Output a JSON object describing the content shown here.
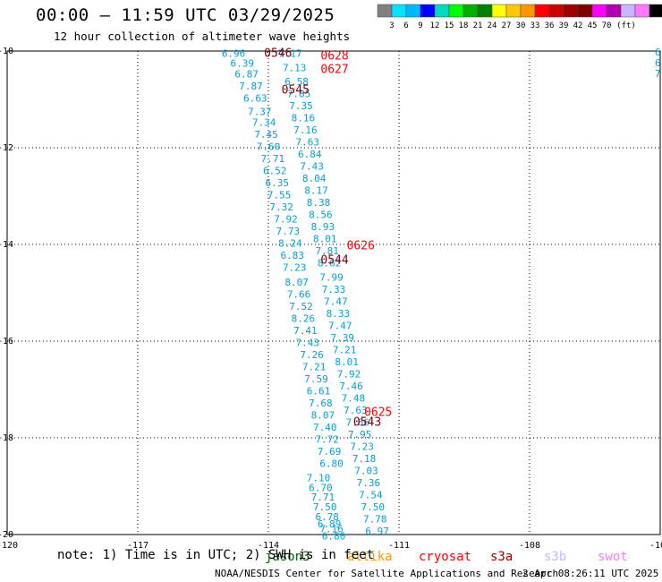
{
  "header": {
    "title": "00:00 – 11:59 UTC 03/29/2025",
    "subtitle": "12 hour collection of altimeter wave heights"
  },
  "footer": {
    "note": "note: 1) Time is in UTC; 2) SWH is in feet",
    "credit": "NOAA/NESDIS Center for Satellite Applications and Research",
    "timestamp": "2 Apr 08:26:11 UTC 2025"
  },
  "colorbar": {
    "colors": [
      "#808080",
      "#00e5ff",
      "#00b8ff",
      "#0000ff",
      "#00d8c0",
      "#00ff00",
      "#00b000",
      "#008000",
      "#ffff00",
      "#ffc800",
      "#ff9600",
      "#ff0000",
      "#d00000",
      "#a00000",
      "#800000",
      "#ff00ff",
      "#b000b0",
      "#c8b4ff",
      "#ff78ff",
      "#000000"
    ],
    "labels": [
      "3",
      "6",
      "9",
      "12",
      "15",
      "18",
      "21",
      "24",
      "27",
      "30",
      "33",
      "36",
      "39",
      "42",
      "45",
      "70",
      "(ft)"
    ]
  },
  "satellites": [
    {
      "name": "jason3",
      "color": "#006400"
    },
    {
      "name": "altika",
      "color": "#ff9600"
    },
    {
      "name": "cryosat",
      "color": "#ff0000"
    },
    {
      "name": "s3a",
      "color": "#a00000"
    },
    {
      "name": "s3b",
      "color": "#c8b4ff"
    },
    {
      "name": "swot",
      "color": "#ff78ff"
    }
  ],
  "chart_data": {
    "type": "scatter",
    "title": "00:00 – 11:59 UTC 03/29/2025",
    "subtitle": "12 hour collection of altimeter wave heights",
    "xlim": [
      -120,
      -105
    ],
    "ylim": [
      -20,
      -10
    ],
    "x_ticks": [
      "-120",
      "-117",
      "-114",
      "-111",
      "-108",
      "-105"
    ],
    "y_ticks": [
      "-10",
      "-12",
      "-14",
      "-16",
      "-18",
      "-20"
    ],
    "grid": true,
    "units": "ft",
    "series": [
      {
        "name": "track-a",
        "color": "#00a0d8",
        "points": [
          [
            -114.8,
            -10.12,
            "6.96"
          ],
          [
            -114.6,
            -10.32,
            "6.39"
          ],
          [
            -114.5,
            -10.55,
            "6.87"
          ],
          [
            -114.4,
            -10.8,
            "7.87"
          ],
          [
            -114.3,
            -11.05,
            "6.63"
          ],
          [
            -114.2,
            -11.32,
            "7.37"
          ],
          [
            -114.1,
            -11.55,
            "7.34"
          ],
          [
            -114.05,
            -11.8,
            "7.45"
          ],
          [
            -114.0,
            -12.05,
            "7.60"
          ],
          [
            -113.9,
            -12.3,
            "7.71"
          ],
          [
            -113.85,
            -12.55,
            "6.52"
          ],
          [
            -113.8,
            -12.8,
            "6.35"
          ],
          [
            -113.75,
            -13.05,
            "7.55"
          ],
          [
            -113.7,
            -13.3,
            "7.32"
          ],
          [
            -113.6,
            -13.55,
            "7.92"
          ],
          [
            -113.55,
            -13.8,
            "7.73"
          ],
          [
            -113.5,
            -14.05,
            "8.24"
          ],
          [
            -113.45,
            -14.3,
            "6.83"
          ],
          [
            -113.4,
            -14.55,
            "7.23"
          ],
          [
            -113.35,
            -14.85,
            "8.07"
          ],
          [
            -113.3,
            -15.1,
            "7.66"
          ],
          [
            -113.25,
            -15.35,
            "7.52"
          ],
          [
            -113.2,
            -15.6,
            "8.26"
          ],
          [
            -113.15,
            -15.85,
            "7.41"
          ],
          [
            -113.1,
            -16.1,
            "7.43"
          ],
          [
            -113.0,
            -16.35,
            "7.26"
          ],
          [
            -112.95,
            -16.6,
            "7.21"
          ],
          [
            -112.9,
            -16.85,
            "7.59"
          ],
          [
            -112.85,
            -17.1,
            "6.61"
          ],
          [
            -112.8,
            -17.35,
            "7.68"
          ],
          [
            -112.75,
            -17.6,
            "8.07"
          ],
          [
            -112.7,
            -17.85,
            "7.40"
          ],
          [
            -112.65,
            -18.1,
            "7.72"
          ],
          [
            -112.6,
            -18.35,
            "7.69"
          ],
          [
            -112.55,
            -18.6,
            "6.80"
          ]
        ]
      },
      {
        "name": "track-b",
        "color": "#00a0d8",
        "points": [
          [
            -113.5,
            -10.12,
            "7.17"
          ],
          [
            -113.4,
            -10.42,
            "7.13"
          ],
          [
            -113.35,
            -10.7,
            "6.58"
          ],
          [
            -113.3,
            -10.95,
            "7.85"
          ],
          [
            -113.25,
            -11.2,
            "7.35"
          ],
          [
            -113.2,
            -11.45,
            "8.16"
          ],
          [
            -113.15,
            -11.7,
            "7.16"
          ],
          [
            -113.1,
            -11.95,
            "7.63"
          ],
          [
            -113.05,
            -12.2,
            "6.84"
          ],
          [
            -113.0,
            -12.45,
            "7.43"
          ],
          [
            -112.95,
            -12.7,
            "8.04"
          ],
          [
            -112.9,
            -12.95,
            "8.17"
          ],
          [
            -112.85,
            -13.2,
            "8.38"
          ],
          [
            -112.8,
            -13.45,
            "8.56"
          ],
          [
            -112.75,
            -13.7,
            "8.93"
          ],
          [
            -112.7,
            -13.95,
            "8.01"
          ],
          [
            -112.65,
            -14.2,
            "7.81"
          ],
          [
            -112.6,
            -14.45,
            "8.62"
          ],
          [
            -112.55,
            -14.75,
            "7.99"
          ],
          [
            -112.5,
            -15.0,
            "7.33"
          ],
          [
            -112.45,
            -15.25,
            "7.47"
          ],
          [
            -112.4,
            -15.5,
            "8.33"
          ],
          [
            -112.35,
            -15.75,
            "7.47"
          ],
          [
            -112.3,
            -16.0,
            "7.39"
          ],
          [
            -112.25,
            -16.25,
            "7.21"
          ],
          [
            -112.2,
            -16.5,
            "8.01"
          ],
          [
            -112.15,
            -16.75,
            "7.92"
          ],
          [
            -112.1,
            -17.0,
            "7.46"
          ],
          [
            -112.05,
            -17.25,
            "7.48"
          ],
          [
            -112.0,
            -17.5,
            "7.63"
          ],
          [
            -111.95,
            -17.75,
            "7.66"
          ],
          [
            -111.9,
            -18.0,
            "7.95"
          ],
          [
            -111.85,
            -18.25,
            "7.23"
          ],
          [
            -111.8,
            -18.5,
            "7.18"
          ],
          [
            -111.75,
            -18.75,
            "7.03"
          ],
          [
            -111.7,
            -19.0,
            "7.36"
          ],
          [
            -111.65,
            -19.25,
            "7.54"
          ],
          [
            -111.6,
            -19.5,
            "7.50"
          ],
          [
            -111.55,
            -19.75,
            "7.78"
          ],
          [
            -111.5,
            -20.0,
            "6.97"
          ]
        ]
      },
      {
        "name": "track-c",
        "color": "#00a0d8",
        "points": [
          [
            -112.85,
            -18.9,
            "7.10"
          ],
          [
            -112.8,
            -19.1,
            "6.70"
          ],
          [
            -112.75,
            -19.3,
            "7.71"
          ],
          [
            -112.7,
            -19.5,
            "7.50"
          ],
          [
            -112.65,
            -19.7,
            "6.78"
          ],
          [
            -112.6,
            -19.85,
            "6.89"
          ],
          [
            -112.55,
            -19.95,
            "7.16"
          ],
          [
            -112.5,
            -20.1,
            "6.80"
          ]
        ]
      }
    ],
    "annotations": [
      {
        "text": "0546",
        "x": -114.1,
        "y": -10.12,
        "color": "#800000"
      },
      {
        "text": "0628",
        "x": -112.8,
        "y": -10.18,
        "color": "#ff0000"
      },
      {
        "text": "0627",
        "x": -112.8,
        "y": -10.45,
        "color": "#ff0000"
      },
      {
        "text": "0545",
        "x": -113.7,
        "y": -10.88,
        "color": "#800000"
      },
      {
        "text": "0626",
        "x": -112.2,
        "y": -14.1,
        "color": "#ff0000"
      },
      {
        "text": "0544",
        "x": -112.8,
        "y": -14.4,
        "color": "#800000"
      },
      {
        "text": "0625",
        "x": -111.8,
        "y": -17.55,
        "color": "#ff0000"
      },
      {
        "text": "0543",
        "x": -112.05,
        "y": -17.75,
        "color": "#800000"
      }
    ],
    "edge_labels": [
      "6.",
      "6",
      "7"
    ]
  }
}
